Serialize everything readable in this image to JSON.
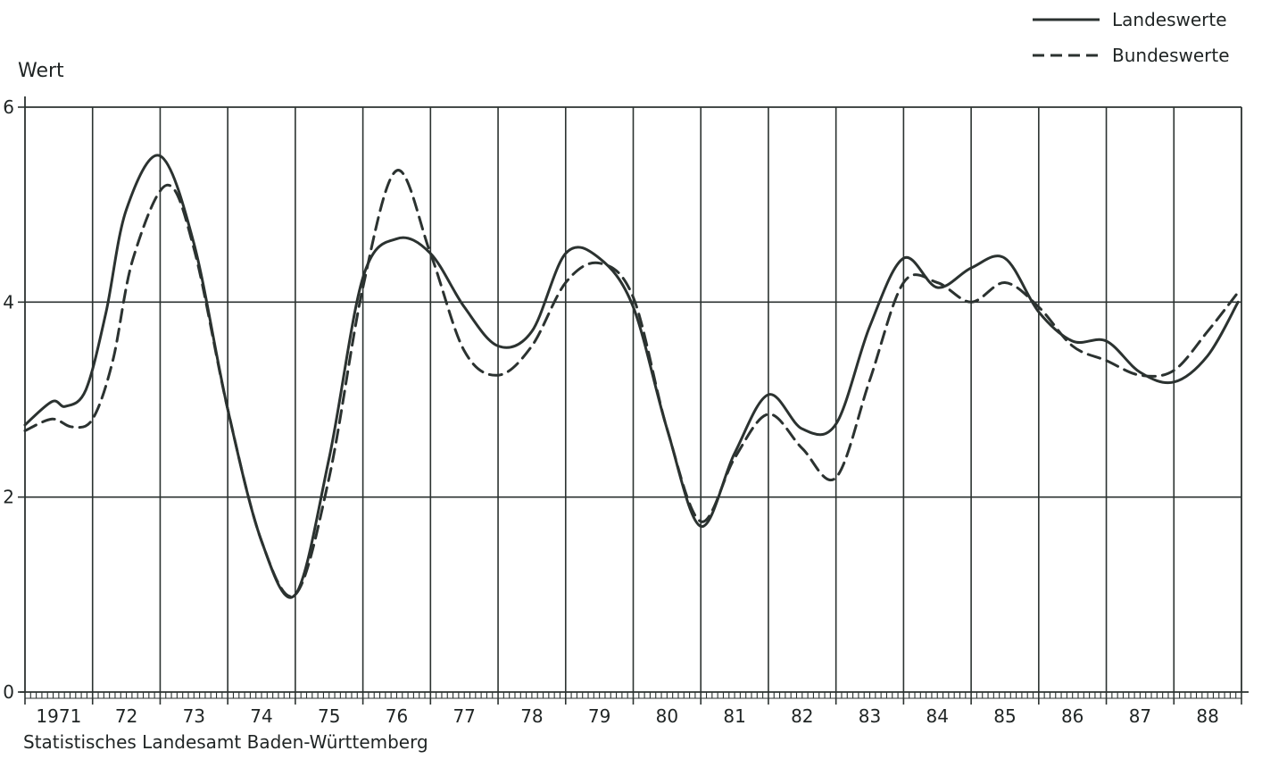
{
  "chart_data": {
    "type": "line",
    "title": "",
    "xlabel": "",
    "ylabel": "Wert",
    "source": "Statistisches Landesamt Baden-Württemberg",
    "ylim": [
      0,
      6
    ],
    "y_ticks": [
      "0",
      "2",
      "4",
      "6"
    ],
    "x_tick_labels": [
      "1971",
      "72",
      "73",
      "74",
      "75",
      "76",
      "77",
      "78",
      "79",
      "80",
      "81",
      "82",
      "83",
      "84",
      "85",
      "86",
      "87",
      "88"
    ],
    "x_range": [
      1971,
      1989
    ],
    "grid": "vertical lines at year boundaries, horizontal lines at 2 and 4",
    "legend_position": "top-right",
    "series": [
      {
        "name": "Landeswerte",
        "style": "solid",
        "color": "#2b3230",
        "x": [
          1971.0,
          1971.4,
          1971.6,
          1971.9,
          1972.2,
          1972.5,
          1973.0,
          1973.5,
          1974.0,
          1974.5,
          1975.0,
          1975.5,
          1976.0,
          1976.5,
          1977.0,
          1977.5,
          1978.0,
          1978.5,
          1979.0,
          1979.5,
          1980.0,
          1980.5,
          1981.0,
          1981.5,
          1982.0,
          1982.5,
          1983.0,
          1983.5,
          1984.0,
          1984.5,
          1985.0,
          1985.5,
          1986.0,
          1986.5,
          1987.0,
          1987.5,
          1988.0,
          1988.5,
          1988.95
        ],
        "y": [
          2.74,
          2.98,
          2.93,
          3.1,
          3.9,
          4.95,
          5.5,
          4.6,
          2.9,
          1.55,
          1.0,
          2.4,
          4.25,
          4.65,
          4.5,
          3.95,
          3.55,
          3.7,
          4.5,
          4.45,
          3.95,
          2.7,
          1.7,
          2.45,
          3.05,
          2.7,
          2.75,
          3.75,
          4.45,
          4.15,
          4.35,
          4.45,
          3.9,
          3.6,
          3.6,
          3.28,
          3.18,
          3.45,
          4.0
        ]
      },
      {
        "name": "Bundeswerte",
        "style": "dashed",
        "color": "#2b3230",
        "x": [
          1971.0,
          1971.4,
          1971.7,
          1972.0,
          1972.3,
          1972.6,
          1973.1,
          1973.5,
          1974.0,
          1974.5,
          1975.0,
          1975.5,
          1976.0,
          1976.5,
          1977.0,
          1977.5,
          1978.0,
          1978.5,
          1979.0,
          1979.5,
          1980.0,
          1980.5,
          1981.0,
          1981.5,
          1982.0,
          1982.5,
          1983.0,
          1983.5,
          1984.0,
          1984.5,
          1985.0,
          1985.5,
          1986.0,
          1986.5,
          1987.0,
          1987.5,
          1988.0,
          1988.5,
          1988.95
        ],
        "y": [
          2.68,
          2.8,
          2.72,
          2.8,
          3.4,
          4.45,
          5.2,
          4.55,
          2.9,
          1.55,
          1.0,
          2.2,
          4.15,
          5.35,
          4.5,
          3.5,
          3.25,
          3.55,
          4.2,
          4.4,
          4.05,
          2.7,
          1.75,
          2.4,
          2.85,
          2.5,
          2.2,
          3.2,
          4.2,
          4.2,
          4.0,
          4.2,
          3.95,
          3.55,
          3.4,
          3.25,
          3.3,
          3.7,
          4.1
        ]
      }
    ]
  }
}
